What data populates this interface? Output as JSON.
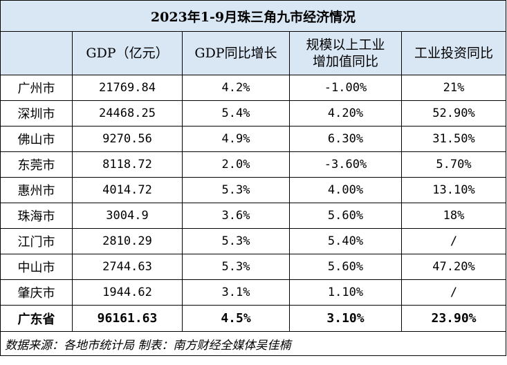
{
  "chart_data": {
    "type": "table",
    "title": "2023年1-9月珠三角九市经济情况",
    "columns": [
      "",
      "GDP（亿元）",
      "GDP同比增长",
      "规模以上工业增加值同比",
      "工业投资同比"
    ],
    "rows": [
      {
        "city": "广州市",
        "gdp": "21769.84",
        "gdp_growth": "4.2%",
        "industrial_added_value": "-1.00%",
        "industrial_investment": "21%"
      },
      {
        "city": "深圳市",
        "gdp": "24468.25",
        "gdp_growth": "5.4%",
        "industrial_added_value": "4.20%",
        "industrial_investment": "52.90%"
      },
      {
        "city": "佛山市",
        "gdp": "9270.56",
        "gdp_growth": "4.9%",
        "industrial_added_value": "6.30%",
        "industrial_investment": "31.50%"
      },
      {
        "city": "东莞市",
        "gdp": "8118.72",
        "gdp_growth": "2.0%",
        "industrial_added_value": "-3.60%",
        "industrial_investment": "5.70%"
      },
      {
        "city": "惠州市",
        "gdp": "4014.72",
        "gdp_growth": "5.3%",
        "industrial_added_value": "4.00%",
        "industrial_investment": "13.10%"
      },
      {
        "city": "珠海市",
        "gdp": "3004.9",
        "gdp_growth": "3.6%",
        "industrial_added_value": "5.60%",
        "industrial_investment": "18%"
      },
      {
        "city": "江门市",
        "gdp": "2810.29",
        "gdp_growth": "5.3%",
        "industrial_added_value": "5.40%",
        "industrial_investment": "/"
      },
      {
        "city": "中山市",
        "gdp": "2744.63",
        "gdp_growth": "5.3%",
        "industrial_added_value": "5.60%",
        "industrial_investment": "47.20%"
      },
      {
        "city": "肇庆市",
        "gdp": "1944.62",
        "gdp_growth": "3.1%",
        "industrial_added_value": "1.10%",
        "industrial_investment": "/"
      }
    ],
    "total": {
      "city": "广东省",
      "gdp": "96161.63",
      "gdp_growth": "4.5%",
      "industrial_added_value": "3.10%",
      "industrial_investment": "23.90%"
    },
    "source": "数据来源：各地市统计局  制表：南方财经全媒体吴佳楠"
  },
  "colors": {
    "header_background": "#d9e7f5",
    "border": "#000000"
  }
}
